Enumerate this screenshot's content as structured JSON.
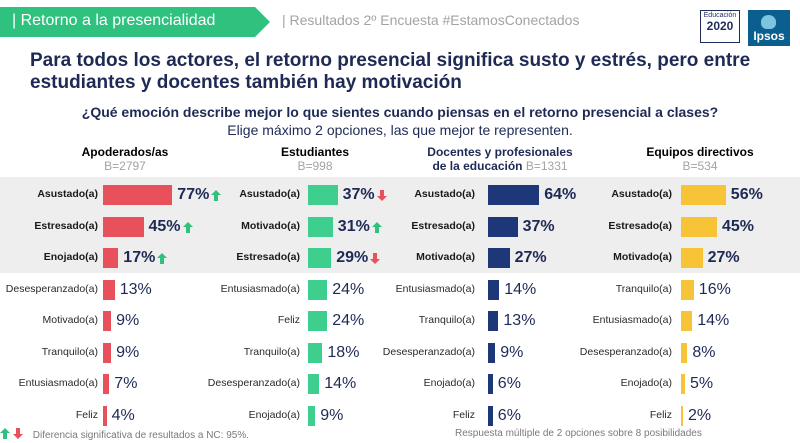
{
  "header": {
    "banner_text": "| Retorno a la presencialidad",
    "subtitle": "| Resultados 2º Encuesta #EstamosConectados",
    "banner_color": "#2ec27e"
  },
  "logos": {
    "educacion_line1": "Educación",
    "educacion_line2": "2020",
    "ipsos": "Ipsos"
  },
  "headline": "Para todos los actores, el retorno presencial significa susto y estrés, pero entre estudiantes y docentes también hay motivación",
  "question": "¿Qué emoción describe mejor lo que sientes cuando piensas en el retorno presencial a clases?",
  "instruction": "Elige máximo 2 opciones, las que mejor te representen.",
  "footer": {
    "legend_text": "Diferencia significativa de resultados a NC: 95%.",
    "note": "Respuesta múltiple de 2 opciones sobre 8 posibilidades",
    "up_color": "#2ec27e",
    "down_color": "#e8505b"
  },
  "chart_data": [
    {
      "type": "bar",
      "group": "Apoderados/as",
      "base": "B=2797",
      "color": "#e8505b",
      "categories": [
        "Asustado(a)",
        "Estresado(a)",
        "Enojado(a)",
        "Desesperanzado(a)",
        "Motivado(a)",
        "Tranquilo(a)",
        "Entusiasmado(a)",
        "Feliz"
      ],
      "values": [
        77,
        45,
        17,
        13,
        9,
        9,
        7,
        4
      ],
      "labels": [
        "77%",
        "45%",
        "17%",
        "13%",
        "9%",
        "9%",
        "7%",
        "4%"
      ],
      "significance": [
        "up",
        "up",
        "up",
        null,
        null,
        null,
        null,
        null
      ]
    },
    {
      "type": "bar",
      "group": "Estudiantes",
      "base": "B=998",
      "color": "#3ecf8e",
      "categories": [
        "Asustado(a)",
        "Motivado(a)",
        "Estresado(a)",
        "Entusiasmado(a)",
        "Feliz",
        "Tranquilo(a)",
        "Desesperanzado(a)",
        "Enojado(a)"
      ],
      "values": [
        37,
        31,
        29,
        24,
        24,
        18,
        14,
        9
      ],
      "labels": [
        "37%",
        "31%",
        "29%",
        "24%",
        "24%",
        "18%",
        "14%",
        "9%"
      ],
      "significance": [
        "down",
        "up",
        "down",
        null,
        null,
        null,
        null,
        null
      ]
    },
    {
      "type": "bar",
      "group": "Docentes y profesionales de la educación",
      "group_line1": "Docentes y profesionales",
      "group_line2": "de la educación",
      "base": "B=1331",
      "color": "#1e3778",
      "categories": [
        "Asustado(a)",
        "Estresado(a)",
        "Motivado(a)",
        "Entusiasmado(a)",
        "Tranquilo(a)",
        "Desesperanzado(a)",
        "Enojado(a)",
        "Feliz"
      ],
      "values": [
        64,
        37,
        27,
        14,
        13,
        9,
        6,
        6
      ],
      "labels": [
        "64%",
        "37%",
        "27%",
        "14%",
        "13%",
        "9%",
        "6%",
        "6%"
      ],
      "significance": [
        null,
        null,
        null,
        null,
        null,
        null,
        null,
        null
      ]
    },
    {
      "type": "bar",
      "group": "Equipos directivos",
      "base": "B=534",
      "color": "#f6c436",
      "categories": [
        "Asustado(a)",
        "Estresado(a)",
        "Motivado(a)",
        "Tranquilo(a)",
        "Entusiasmado(a)",
        "Desesperanzado(a)",
        "Enojado(a)",
        "Feliz"
      ],
      "values": [
        56,
        45,
        27,
        16,
        14,
        8,
        5,
        2
      ],
      "labels": [
        "56%",
        "45%",
        "27%",
        "16%",
        "14%",
        "8%",
        "5%",
        "2%"
      ],
      "significance": [
        null,
        null,
        null,
        null,
        null,
        null,
        null,
        null
      ]
    }
  ]
}
